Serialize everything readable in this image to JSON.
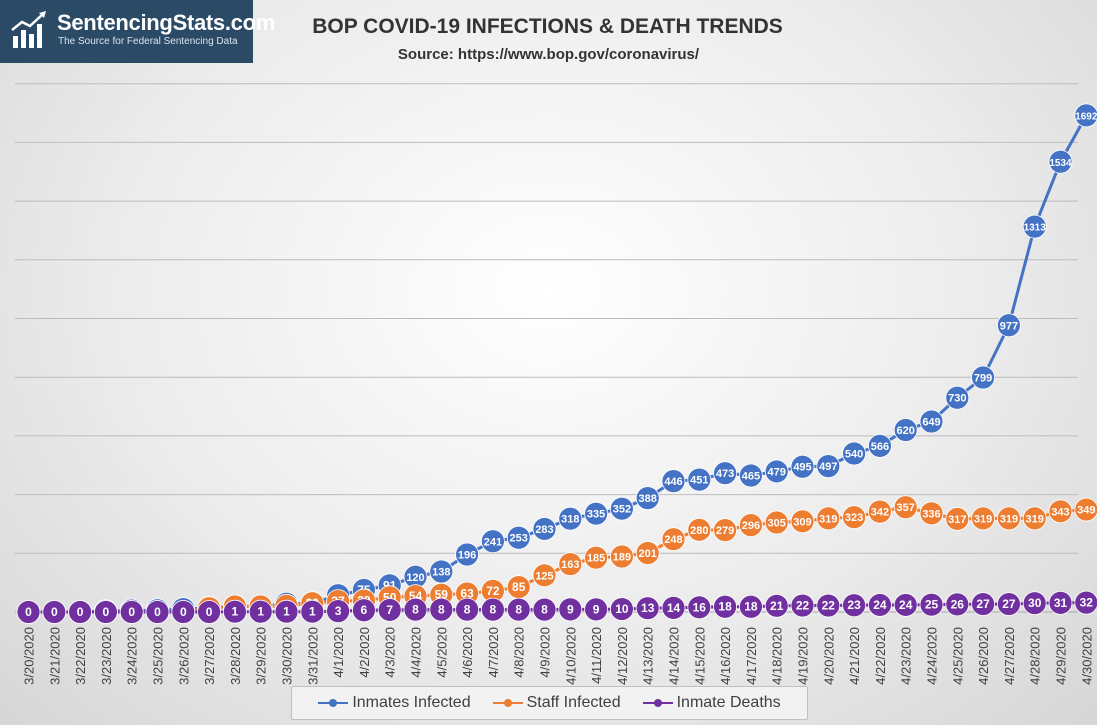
{
  "logo": {
    "brand": "SentencingStats.com",
    "tagline": "The Source for Federal Sentencing Data",
    "icon": "bar-chart-trend-icon"
  },
  "chart_data": {
    "type": "line",
    "title": "BOP COVID-19 INFECTIONS & DEATH TRENDS",
    "subtitle": "Source: https://www.bop.gov/coronavirus/",
    "xlabel": "",
    "ylabel": "",
    "ylim": [
      0,
      1800
    ],
    "grid": true,
    "legend_position": "bottom",
    "categories": [
      "3/20/2020",
      "3/21/2020",
      "3/22/2020",
      "3/23/2020",
      "3/24/2020",
      "3/25/2020",
      "3/26/2020",
      "3/27/2020",
      "3/28/2020",
      "3/29/2020",
      "3/30/2020",
      "3/31/2020",
      "4/1/2020",
      "4/2/2020",
      "4/3/2020",
      "4/4/2020",
      "4/5/2020",
      "4/6/2020",
      "4/7/2020",
      "4/8/2020",
      "4/9/2020",
      "4/10/2020",
      "4/11/2020",
      "4/12/2020",
      "4/13/2020",
      "4/14/2020",
      "4/15/2020",
      "4/16/2020",
      "4/17/2020",
      "4/18/2020",
      "4/19/2020",
      "4/20/2020",
      "4/21/2020",
      "4/22/2020",
      "4/23/2020",
      "4/24/2020",
      "4/25/2020",
      "4/26/2020",
      "4/27/2020",
      "4/28/2020",
      "4/29/2020",
      "4/30/2020"
    ],
    "series": [
      {
        "name": "Inmates Infected",
        "color": "#4472c4",
        "values": [
          0,
          0,
          0,
          3,
          5,
          6,
          10,
          14,
          19,
          19,
          28,
          30,
          57,
          75,
          91,
          120,
          138,
          196,
          241,
          253,
          283,
          318,
          335,
          352,
          388,
          446,
          451,
          473,
          465,
          479,
          495,
          497,
          540,
          566,
          620,
          649,
          730,
          799,
          977,
          1313,
          1534,
          1692
        ]
      },
      {
        "name": "Staff Infected",
        "color": "#ed7d31",
        "values": [
          0,
          0,
          0,
          0,
          0,
          0,
          0,
          13,
          19,
          19,
          21,
          30,
          37,
          39,
          50,
          54,
          59,
          63,
          72,
          85,
          125,
          163,
          185,
          189,
          201,
          248,
          280,
          279,
          296,
          305,
          309,
          319,
          323,
          342,
          357,
          336,
          317,
          319,
          319,
          319,
          343,
          349
        ]
      },
      {
        "name": "Inmate Deaths",
        "color": "#7030a0",
        "values": [
          0,
          0,
          0,
          0,
          0,
          0,
          0,
          0,
          1,
          1,
          1,
          1,
          3,
          6,
          7,
          8,
          8,
          8,
          8,
          8,
          8,
          9,
          9,
          10,
          13,
          14,
          16,
          18,
          18,
          21,
          22,
          22,
          23,
          24,
          24,
          25,
          26,
          27,
          27,
          30,
          31,
          32
        ]
      }
    ]
  }
}
